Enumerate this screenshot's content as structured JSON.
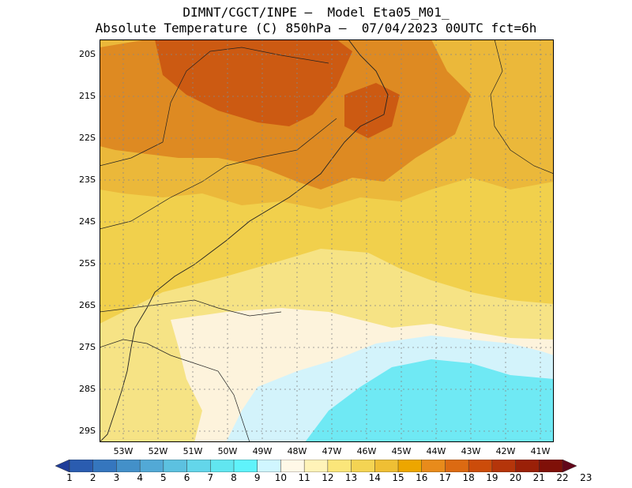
{
  "title": {
    "line1": "DIMNT/CGCT/INPE –  Model Eta05_M01_",
    "line2": "Absolute Temperature (C) 850hPa –  07/04/2023 00UTC fct=6h"
  },
  "map": {
    "lat_ticks": [
      "20S",
      "21S",
      "22S",
      "23S",
      "24S",
      "25S",
      "26S",
      "27S",
      "28S",
      "29S"
    ],
    "lon_ticks": [
      "53W",
      "52W",
      "51W",
      "50W",
      "49W",
      "48W",
      "47W",
      "46W",
      "45W",
      "44W",
      "43W",
      "42W",
      "41W"
    ],
    "lon_range": [
      -53.7,
      -40.6
    ],
    "lat_range": [
      -29.4,
      -19.8
    ]
  },
  "colorbar": {
    "labels": [
      "1",
      "2",
      "3",
      "4",
      "5",
      "6",
      "7",
      "8",
      "9",
      "10",
      "11",
      "12",
      "13",
      "14",
      "15",
      "16",
      "17",
      "18",
      "19",
      "20",
      "21",
      "22",
      "23"
    ],
    "colors": [
      "#1f3d99",
      "#2a5cb0",
      "#3576be",
      "#4390c9",
      "#52a9d6",
      "#5cc1e0",
      "#63d6ea",
      "#61e6f0",
      "#5ff3fb",
      "#d0f6ff",
      "#fff8e7",
      "#fff3b8",
      "#fbe67a",
      "#f4d453",
      "#efbf34",
      "#eda600",
      "#e88b1b",
      "#dc6a12",
      "#cc4c0a",
      "#b5350a",
      "#9a2008",
      "#7f1008",
      "#62061a"
    ]
  },
  "fields": {
    "background": "#f1d04c",
    "regions": [
      {
        "name": "warm-north",
        "color": "#ebb83a"
      },
      {
        "name": "hot-core",
        "color": "#de8a22"
      },
      {
        "name": "hottest",
        "color": "#cc5a12"
      },
      {
        "name": "mild-south",
        "color": "#f6e385"
      },
      {
        "name": "cool-band",
        "color": "#fdf3dc"
      },
      {
        "name": "cold-ocean",
        "color": "#d3f3fb"
      },
      {
        "name": "colder-ocean",
        "color": "#6fe9f4"
      }
    ]
  }
}
